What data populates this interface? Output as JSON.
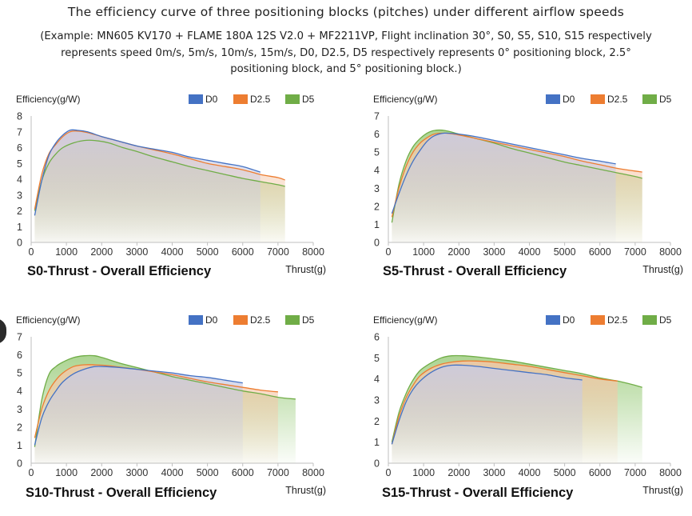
{
  "title": "The efficiency curve of three positioning blocks (pitches) under different airflow speeds",
  "subtitle": "(Example: MN605 KV170 + FLAME 180A 12S V2.0 + MF2211VP, Flight inclination 30°, S0, S5, S10, S15 respectively represents speed 0m/s, 5m/s, 10m/s, 15m/s, D0, D2.5, D5 respectively represents 0° positioning block, 2.5° positioning block, and 5° positioning block.)",
  "colors": {
    "D0": "#4472c4",
    "D2.5": "#ed7d31",
    "D5": "#70ad47"
  },
  "chart_data": [
    {
      "type": "area",
      "caption": "S0-Thrust - Overall Efficiency",
      "ylabel": "Efficiency(g/W)",
      "xlabel": "Thrust(g)",
      "xlim": [
        0,
        8000
      ],
      "ylim": [
        0,
        8
      ],
      "xticks": [
        0,
        1000,
        2000,
        3000,
        4000,
        5000,
        6000,
        7000,
        8000
      ],
      "yticks": [
        0,
        1,
        2,
        3,
        4,
        5,
        6,
        7,
        8
      ],
      "legend": "top-right",
      "series": [
        {
          "name": "D0",
          "points": [
            [
              100,
              1.7
            ],
            [
              300,
              3.9
            ],
            [
              500,
              5.5
            ],
            [
              700,
              6.3
            ],
            [
              900,
              6.8
            ],
            [
              1100,
              7.1
            ],
            [
              1300,
              7.1
            ],
            [
              1600,
              7.0
            ],
            [
              2000,
              6.7
            ],
            [
              2500,
              6.4
            ],
            [
              3000,
              6.1
            ],
            [
              3500,
              5.9
            ],
            [
              4000,
              5.7
            ],
            [
              4500,
              5.4
            ],
            [
              5000,
              5.2
            ],
            [
              5500,
              5.0
            ],
            [
              6000,
              4.8
            ],
            [
              6500,
              4.45
            ]
          ]
        },
        {
          "name": "D2.5",
          "points": [
            [
              100,
              2.1
            ],
            [
              300,
              4.3
            ],
            [
              500,
              5.6
            ],
            [
              700,
              6.2
            ],
            [
              900,
              6.7
            ],
            [
              1100,
              7.0
            ],
            [
              1300,
              7.05
            ],
            [
              1600,
              6.95
            ],
            [
              2000,
              6.7
            ],
            [
              2500,
              6.4
            ],
            [
              3000,
              6.1
            ],
            [
              3500,
              5.85
            ],
            [
              4000,
              5.6
            ],
            [
              4500,
              5.3
            ],
            [
              5000,
              5.0
            ],
            [
              5500,
              4.8
            ],
            [
              6000,
              4.6
            ],
            [
              6500,
              4.3
            ],
            [
              7000,
              4.1
            ],
            [
              7200,
              3.95
            ]
          ]
        },
        {
          "name": "D5",
          "points": [
            [
              100,
              2.0
            ],
            [
              300,
              3.9
            ],
            [
              500,
              5.0
            ],
            [
              700,
              5.6
            ],
            [
              900,
              6.0
            ],
            [
              1200,
              6.3
            ],
            [
              1500,
              6.45
            ],
            [
              1800,
              6.45
            ],
            [
              2200,
              6.3
            ],
            [
              2600,
              6.0
            ],
            [
              3000,
              5.75
            ],
            [
              3500,
              5.4
            ],
            [
              4000,
              5.1
            ],
            [
              4500,
              4.8
            ],
            [
              5000,
              4.55
            ],
            [
              5500,
              4.3
            ],
            [
              6000,
              4.05
            ],
            [
              6500,
              3.85
            ],
            [
              7000,
              3.65
            ],
            [
              7200,
              3.55
            ]
          ]
        }
      ]
    },
    {
      "type": "area",
      "caption": "S5-Thrust - Overall Efficiency",
      "ylabel": "Efficiency(g/W)",
      "xlabel": "Thrust(g)",
      "xlim": [
        0,
        8000
      ],
      "ylim": [
        0,
        7
      ],
      "xticks": [
        0,
        1000,
        2000,
        3000,
        4000,
        5000,
        6000,
        7000,
        8000
      ],
      "yticks": [
        0,
        1,
        2,
        3,
        4,
        5,
        6,
        7
      ],
      "legend": "top-right",
      "series": [
        {
          "name": "D0",
          "points": [
            [
              100,
              1.6
            ],
            [
              300,
              2.7
            ],
            [
              500,
              3.7
            ],
            [
              700,
              4.5
            ],
            [
              900,
              5.1
            ],
            [
              1100,
              5.6
            ],
            [
              1300,
              5.9
            ],
            [
              1600,
              6.05
            ],
            [
              2000,
              6.0
            ],
            [
              2500,
              5.85
            ],
            [
              3000,
              5.65
            ],
            [
              3500,
              5.45
            ],
            [
              4000,
              5.25
            ],
            [
              4500,
              5.05
            ],
            [
              5000,
              4.85
            ],
            [
              5500,
              4.65
            ],
            [
              6000,
              4.5
            ],
            [
              6450,
              4.35
            ]
          ]
        },
        {
          "name": "D2.5",
          "points": [
            [
              100,
              1.4
            ],
            [
              300,
              3.0
            ],
            [
              500,
              4.2
            ],
            [
              700,
              5.0
            ],
            [
              900,
              5.5
            ],
            [
              1100,
              5.8
            ],
            [
              1300,
              6.0
            ],
            [
              1600,
              6.05
            ],
            [
              2000,
              5.95
            ],
            [
              2500,
              5.75
            ],
            [
              3000,
              5.55
            ],
            [
              3500,
              5.35
            ],
            [
              4000,
              5.15
            ],
            [
              4500,
              4.95
            ],
            [
              5000,
              4.75
            ],
            [
              5500,
              4.5
            ],
            [
              6000,
              4.3
            ],
            [
              6500,
              4.1
            ],
            [
              7000,
              3.95
            ],
            [
              7200,
              3.9
            ]
          ]
        },
        {
          "name": "D5",
          "points": [
            [
              100,
              1.1
            ],
            [
              300,
              3.2
            ],
            [
              500,
              4.5
            ],
            [
              700,
              5.3
            ],
            [
              900,
              5.75
            ],
            [
              1100,
              6.05
            ],
            [
              1300,
              6.2
            ],
            [
              1600,
              6.2
            ],
            [
              2000,
              6.0
            ],
            [
              2500,
              5.75
            ],
            [
              3000,
              5.5
            ],
            [
              3500,
              5.2
            ],
            [
              4000,
              4.95
            ],
            [
              4500,
              4.7
            ],
            [
              5000,
              4.45
            ],
            [
              5500,
              4.25
            ],
            [
              6000,
              4.05
            ],
            [
              6500,
              3.85
            ],
            [
              7000,
              3.65
            ],
            [
              7200,
              3.55
            ]
          ]
        }
      ]
    },
    {
      "type": "area",
      "caption": "S10-Thrust - Overall Efficiency",
      "ylabel": "Efficiency(g/W)",
      "xlabel": "Thrust(g)",
      "xlim": [
        0,
        8000
      ],
      "ylim": [
        0,
        7
      ],
      "xticks": [
        0,
        1000,
        2000,
        3000,
        4000,
        5000,
        6000,
        7000,
        8000
      ],
      "yticks": [
        0,
        1,
        2,
        3,
        4,
        5,
        6,
        7
      ],
      "legend": "top-right",
      "series": [
        {
          "name": "D0",
          "points": [
            [
              100,
              1.0
            ],
            [
              300,
              2.5
            ],
            [
              500,
              3.4
            ],
            [
              700,
              4.0
            ],
            [
              900,
              4.5
            ],
            [
              1200,
              4.95
            ],
            [
              1500,
              5.2
            ],
            [
              1800,
              5.35
            ],
            [
              2100,
              5.35
            ],
            [
              2500,
              5.3
            ],
            [
              3000,
              5.2
            ],
            [
              3500,
              5.1
            ],
            [
              4000,
              5.0
            ],
            [
              4500,
              4.85
            ],
            [
              5000,
              4.75
            ],
            [
              5500,
              4.6
            ],
            [
              6000,
              4.45
            ]
          ]
        },
        {
          "name": "D2.5",
          "points": [
            [
              100,
              1.4
            ],
            [
              300,
              3.0
            ],
            [
              500,
              4.0
            ],
            [
              700,
              4.6
            ],
            [
              900,
              5.0
            ],
            [
              1200,
              5.35
            ],
            [
              1500,
              5.45
            ],
            [
              1800,
              5.45
            ],
            [
              2200,
              5.4
            ],
            [
              2600,
              5.3
            ],
            [
              3000,
              5.2
            ],
            [
              3500,
              5.05
            ],
            [
              4000,
              4.9
            ],
            [
              4500,
              4.7
            ],
            [
              5000,
              4.5
            ],
            [
              5500,
              4.35
            ],
            [
              6000,
              4.2
            ],
            [
              6500,
              4.05
            ],
            [
              7000,
              3.95
            ]
          ]
        },
        {
          "name": "D5",
          "points": [
            [
              100,
              0.9
            ],
            [
              300,
              3.5
            ],
            [
              500,
              4.9
            ],
            [
              700,
              5.35
            ],
            [
              900,
              5.6
            ],
            [
              1200,
              5.85
            ],
            [
              1500,
              5.95
            ],
            [
              1800,
              5.95
            ],
            [
              2100,
              5.8
            ],
            [
              2500,
              5.55
            ],
            [
              3000,
              5.3
            ],
            [
              3500,
              5.05
            ],
            [
              4000,
              4.8
            ],
            [
              4500,
              4.6
            ],
            [
              5000,
              4.4
            ],
            [
              5500,
              4.2
            ],
            [
              6000,
              4.0
            ],
            [
              6500,
              3.85
            ],
            [
              7000,
              3.65
            ],
            [
              7500,
              3.55
            ]
          ]
        }
      ]
    },
    {
      "type": "area",
      "caption": "S15-Thrust - Overall Efficiency",
      "ylabel": "Efficiency(g/W)",
      "xlabel": "Thrust(g)",
      "xlim": [
        0,
        8000
      ],
      "ylim": [
        0,
        6
      ],
      "xticks": [
        0,
        1000,
        2000,
        3000,
        4000,
        5000,
        6000,
        7000,
        8000
      ],
      "yticks": [
        0,
        1,
        2,
        3,
        4,
        5,
        6
      ],
      "legend": "top-right",
      "series": [
        {
          "name": "D0",
          "points": [
            [
              100,
              0.9
            ],
            [
              300,
              2.0
            ],
            [
              500,
              2.9
            ],
            [
              700,
              3.5
            ],
            [
              900,
              3.9
            ],
            [
              1200,
              4.3
            ],
            [
              1500,
              4.55
            ],
            [
              1800,
              4.65
            ],
            [
              2100,
              4.65
            ],
            [
              2500,
              4.6
            ],
            [
              3000,
              4.5
            ],
            [
              3500,
              4.4
            ],
            [
              4000,
              4.3
            ],
            [
              4500,
              4.2
            ],
            [
              5000,
              4.05
            ],
            [
              5500,
              3.95
            ]
          ]
        },
        {
          "name": "D2.5",
          "points": [
            [
              100,
              0.9
            ],
            [
              300,
              2.2
            ],
            [
              500,
              3.1
            ],
            [
              700,
              3.7
            ],
            [
              900,
              4.15
            ],
            [
              1200,
              4.5
            ],
            [
              1500,
              4.7
            ],
            [
              1800,
              4.8
            ],
            [
              2100,
              4.85
            ],
            [
              2500,
              4.85
            ],
            [
              3000,
              4.8
            ],
            [
              3500,
              4.7
            ],
            [
              4000,
              4.6
            ],
            [
              4500,
              4.45
            ],
            [
              5000,
              4.3
            ],
            [
              5500,
              4.15
            ],
            [
              6000,
              4.0
            ],
            [
              6500,
              3.9
            ]
          ]
        },
        {
          "name": "D5",
          "points": [
            [
              100,
              1.0
            ],
            [
              300,
              2.4
            ],
            [
              500,
              3.3
            ],
            [
              700,
              3.95
            ],
            [
              900,
              4.4
            ],
            [
              1200,
              4.75
            ],
            [
              1500,
              5.0
            ],
            [
              1800,
              5.1
            ],
            [
              2100,
              5.1
            ],
            [
              2500,
              5.05
            ],
            [
              3000,
              4.95
            ],
            [
              3500,
              4.85
            ],
            [
              4000,
              4.7
            ],
            [
              4500,
              4.55
            ],
            [
              5000,
              4.4
            ],
            [
              5500,
              4.25
            ],
            [
              6000,
              4.05
            ],
            [
              6500,
              3.9
            ],
            [
              7000,
              3.7
            ],
            [
              7200,
              3.6
            ]
          ]
        }
      ]
    }
  ]
}
